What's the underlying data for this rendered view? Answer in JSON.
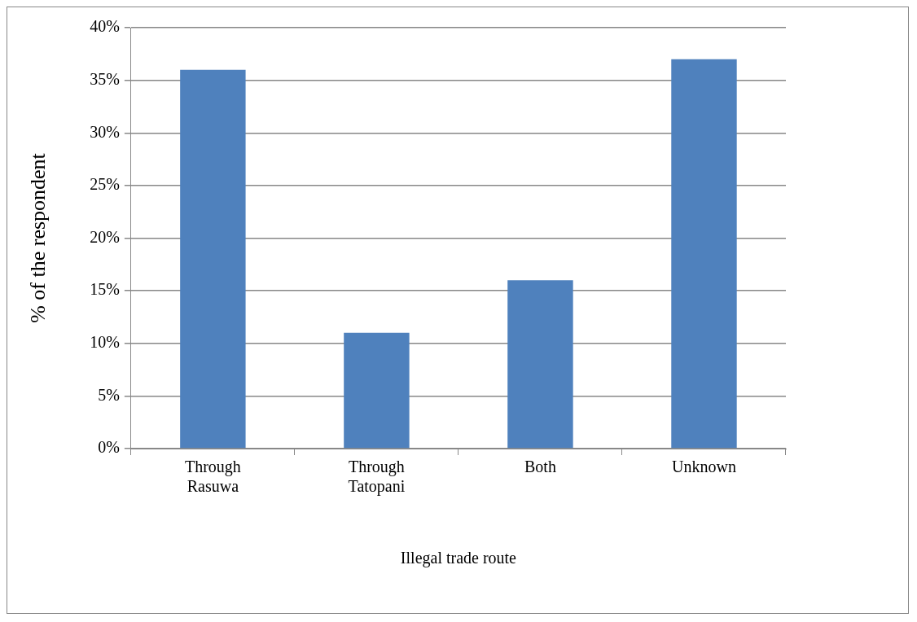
{
  "chart_data": {
    "type": "bar",
    "xlabel": "Illegal trade route",
    "ylabel": "% of the respondent",
    "categories": [
      "Through Rasuwa",
      "Through Tatopani",
      "Both",
      "Unknown"
    ],
    "values": [
      36,
      11,
      16,
      37
    ],
    "color": "#4f81bd",
    "ylim": [
      0,
      40
    ],
    "yticks": [
      {
        "value": 0,
        "label": "0%"
      },
      {
        "value": 5,
        "label": "5%"
      },
      {
        "value": 10,
        "label": "10%"
      },
      {
        "value": 15,
        "label": "15%"
      },
      {
        "value": 20,
        "label": "20%"
      },
      {
        "value": 25,
        "label": "25%"
      },
      {
        "value": 30,
        "label": "30%"
      },
      {
        "value": 35,
        "label": "35%"
      },
      {
        "value": 40,
        "label": "40%"
      }
    ],
    "grid": "y",
    "legend": false
  }
}
